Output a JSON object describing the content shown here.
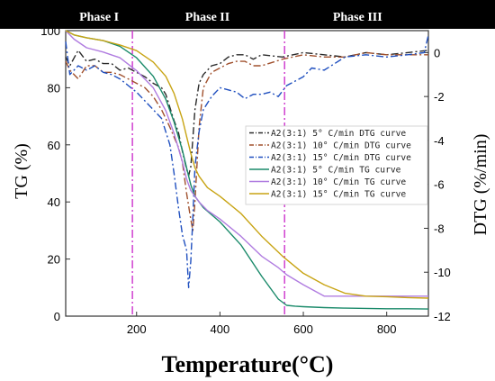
{
  "chart_data": {
    "type": "line",
    "xlabel": "Temperature(°C)",
    "ylabel_left": "TG (%)",
    "ylabel_right": "DTG (%/min)",
    "xlim": [
      30,
      900
    ],
    "ylim_left": [
      0,
      100
    ],
    "ylim_right": [
      -12,
      1
    ],
    "x_ticks": [
      200,
      400,
      600,
      800
    ],
    "y_left_ticks": [
      0,
      20,
      40,
      60,
      80,
      100
    ],
    "y_right_ticks": [
      -12,
      -10,
      -8,
      -6,
      -4,
      -2,
      0
    ],
    "grid": false,
    "legend_position": "right",
    "phase_lines": [
      190,
      555
    ],
    "phases": [
      {
        "label": "Phase I",
        "x": 110
      },
      {
        "label": "Phase II",
        "x": 370
      },
      {
        "label": "Phase III",
        "x": 730
      }
    ],
    "series": [
      {
        "name": "A2(3:1)  5° C/min DTG curve",
        "axis": "right",
        "color": "#2b2b2b",
        "dash": "8,3,2,3",
        "x": [
          30,
          40,
          60,
          80,
          100,
          120,
          140,
          160,
          180,
          200,
          220,
          240,
          260,
          270,
          280,
          290,
          300,
          310,
          320,
          325,
          330,
          340,
          350,
          360,
          380,
          400,
          420,
          440,
          460,
          480,
          500,
          550,
          600,
          650,
          700,
          750,
          800,
          850,
          900
        ],
        "y": [
          -0.2,
          -0.6,
          0.1,
          -0.4,
          -0.3,
          -0.5,
          -0.5,
          -0.8,
          -0.7,
          -0.9,
          -1.1,
          -1.4,
          -1.6,
          -1.9,
          -2.5,
          -3.1,
          -3.6,
          -4.5,
          -5.3,
          -5.6,
          -5.2,
          -2.6,
          -1.4,
          -1.0,
          -0.6,
          -0.5,
          -0.2,
          -0.1,
          -0.1,
          -0.3,
          -0.1,
          -0.2,
          0.0,
          -0.1,
          -0.2,
          0.0,
          -0.1,
          0.0,
          0.1
        ]
      },
      {
        "name": "A2(3:1) 10° C/min DTG curve",
        "axis": "right",
        "color": "#a0502d",
        "dash": "8,3,2,3",
        "x": [
          30,
          40,
          60,
          80,
          100,
          120,
          140,
          160,
          180,
          200,
          220,
          240,
          260,
          280,
          300,
          310,
          320,
          330,
          335,
          340,
          350,
          360,
          380,
          400,
          420,
          440,
          460,
          480,
          500,
          550,
          600,
          650,
          700,
          750,
          800,
          850,
          900
        ],
        "y": [
          -0.4,
          -0.8,
          -1.2,
          -0.6,
          -0.6,
          -0.9,
          -0.9,
          -1.0,
          -1.2,
          -1.4,
          -1.6,
          -2.0,
          -2.6,
          -3.4,
          -4.3,
          -5.0,
          -6.4,
          -7.6,
          -8.1,
          -6.8,
          -3.4,
          -1.6,
          -0.9,
          -0.7,
          -0.5,
          -0.4,
          -0.4,
          -0.6,
          -0.6,
          -0.3,
          -0.1,
          -0.2,
          -0.2,
          0.0,
          -0.1,
          -0.1,
          -0.1
        ]
      },
      {
        "name": "A2(3:1) 15° C/min DTG curve",
        "axis": "right",
        "color": "#1f4fbf",
        "dash": "8,3,2,3",
        "x": [
          30,
          40,
          60,
          80,
          100,
          120,
          140,
          160,
          180,
          200,
          220,
          240,
          260,
          280,
          290,
          300,
          310,
          320,
          325,
          330,
          335,
          340,
          350,
          360,
          380,
          400,
          420,
          440,
          460,
          480,
          500,
          520,
          540,
          560,
          580,
          600,
          620,
          650,
          700,
          750,
          800,
          850,
          890,
          900
        ],
        "y": [
          0.5,
          -1.0,
          -0.6,
          -0.8,
          -0.6,
          -0.9,
          -1.0,
          -1.2,
          -1.5,
          -1.8,
          -2.2,
          -2.6,
          -3.0,
          -4.2,
          -5.5,
          -7.0,
          -8.3,
          -9.0,
          -10.7,
          -9.5,
          -7.5,
          -5.2,
          -3.6,
          -2.6,
          -2.0,
          -1.6,
          -1.7,
          -1.8,
          -2.1,
          -1.9,
          -1.9,
          -1.8,
          -2.0,
          -1.5,
          -1.3,
          -1.1,
          -0.7,
          -0.8,
          -0.2,
          -0.1,
          -0.2,
          -0.1,
          0.0,
          0.8
        ]
      },
      {
        "name": "A2(3:1)  5° C/min TG curve",
        "axis": "left",
        "color": "#1a8a6a",
        "dash": "",
        "x": [
          30,
          50,
          80,
          120,
          160,
          200,
          240,
          270,
          290,
          310,
          320,
          330,
          340,
          360,
          400,
          450,
          500,
          540,
          560,
          580,
          600,
          650,
          700,
          750,
          800,
          850,
          900
        ],
        "y": [
          100,
          98.5,
          97.5,
          96.5,
          94.5,
          90.5,
          84,
          76,
          68,
          58,
          52,
          46,
          42,
          38,
          33,
          25,
          14,
          6,
          3.8,
          3.5,
          3.3,
          3.0,
          2.8,
          2.7,
          2.6,
          2.6,
          2.5
        ]
      },
      {
        "name": "A2(3:1) 10° C/min TG curve",
        "axis": "left",
        "color": "#b07ce0",
        "dash": "",
        "x": [
          30,
          50,
          80,
          120,
          160,
          200,
          240,
          270,
          290,
          310,
          320,
          330,
          340,
          350,
          370,
          400,
          450,
          500,
          540,
          560,
          600,
          650,
          700,
          750,
          800,
          850,
          900
        ],
        "y": [
          100,
          97,
          94,
          92.5,
          90.5,
          86,
          80,
          72,
          64,
          54,
          48,
          44,
          42,
          40,
          37,
          34,
          28,
          21,
          17,
          14.5,
          11,
          7,
          7,
          7,
          7,
          7,
          7
        ]
      },
      {
        "name": "A2(3:1) 15° C/min TG curve",
        "axis": "left",
        "color": "#c8a414",
        "dash": "",
        "x": [
          30,
          50,
          80,
          120,
          160,
          200,
          240,
          270,
          290,
          310,
          320,
          330,
          340,
          350,
          370,
          400,
          450,
          500,
          550,
          600,
          650,
          700,
          750,
          800,
          850,
          900
        ],
        "y": [
          100,
          98.5,
          97.5,
          96.5,
          95,
          93,
          89,
          84,
          78,
          69,
          63,
          57,
          52,
          49,
          45,
          42,
          36,
          28,
          21,
          15,
          11,
          8,
          7,
          6.8,
          6.5,
          6.3
        ]
      }
    ]
  }
}
